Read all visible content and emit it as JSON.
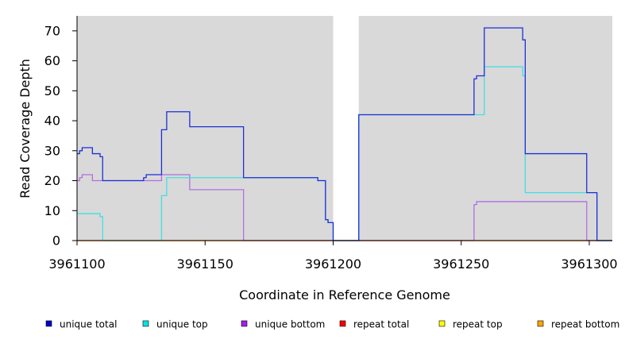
{
  "chart_data": {
    "type": "line",
    "title": "",
    "xlabel": "Coordinate in Reference Genome",
    "ylabel": "Read Coverage Depth",
    "xlim": [
      3961100,
      3961309
    ],
    "ylim": [
      0,
      75
    ],
    "x_ticks": [
      3961100,
      3961150,
      3961200,
      3961250,
      3961300
    ],
    "x_tick_labels": [
      "3961100",
      "3961150",
      "3961200",
      "3961250",
      "3961300"
    ],
    "y_ticks": [
      0,
      10,
      20,
      30,
      40,
      50,
      60,
      70
    ],
    "y_tick_labels": [
      "0",
      "10",
      "20",
      "30",
      "40",
      "50",
      "60",
      "70"
    ],
    "gap": [
      3961200,
      3961210
    ],
    "grid": false,
    "legend_position": "bottom",
    "background": "#d9d9d9",
    "series": [
      {
        "name": "unique total",
        "color": "#0000cc",
        "line_color": "#1f2fd8",
        "points": [
          [
            3961100,
            29
          ],
          [
            3961101,
            30
          ],
          [
            3961102,
            31
          ],
          [
            3961106,
            29
          ],
          [
            3961109,
            28
          ],
          [
            3961110,
            20
          ],
          [
            3961126,
            21
          ],
          [
            3961127,
            22
          ],
          [
            3961133,
            37
          ],
          [
            3961135,
            43
          ],
          [
            3961144,
            38
          ],
          [
            3961165,
            21
          ],
          [
            3961194,
            20
          ],
          [
            3961197,
            7
          ],
          [
            3961198,
            6
          ],
          [
            3961200,
            0
          ],
          [
            3961210,
            42
          ],
          [
            3961255,
            54
          ],
          [
            3961256,
            55
          ],
          [
            3961259,
            71
          ],
          [
            3961274,
            67
          ],
          [
            3961275,
            29
          ],
          [
            3961299,
            16
          ],
          [
            3961303,
            0
          ],
          [
            3961309,
            0
          ]
        ]
      },
      {
        "name": "unique top",
        "color": "#00e5e5",
        "line_color": "#40e0e0",
        "points": [
          [
            3961100,
            9
          ],
          [
            3961109,
            8
          ],
          [
            3961110,
            0
          ],
          [
            3961133,
            15
          ],
          [
            3961135,
            21
          ],
          [
            3961165,
            21
          ],
          [
            3961194,
            20
          ],
          [
            3961197,
            7
          ],
          [
            3961198,
            6
          ],
          [
            3961200,
            0
          ],
          [
            3961210,
            42
          ],
          [
            3961256,
            42
          ],
          [
            3961259,
            58
          ],
          [
            3961274,
            55
          ],
          [
            3961275,
            16
          ],
          [
            3961299,
            16
          ],
          [
            3961303,
            0
          ],
          [
            3961309,
            0
          ]
        ]
      },
      {
        "name": "unique bottom",
        "color": "#a020f0",
        "line_color": "#b070e0",
        "points": [
          [
            3961100,
            20
          ],
          [
            3961101,
            21
          ],
          [
            3961102,
            22
          ],
          [
            3961106,
            20
          ],
          [
            3961133,
            22
          ],
          [
            3961144,
            17
          ],
          [
            3961165,
            0
          ],
          [
            3961255,
            12
          ],
          [
            3961256,
            13
          ],
          [
            3961299,
            0
          ],
          [
            3961309,
            0
          ]
        ]
      },
      {
        "name": "repeat total",
        "color": "#ff0000",
        "line_color": "#ff3030",
        "points": [
          [
            3961100,
            0
          ],
          [
            3961200,
            0
          ],
          [
            3961210,
            0
          ],
          [
            3961309,
            0
          ]
        ]
      },
      {
        "name": "repeat top",
        "color": "#ffff00",
        "line_color": "#ffff40",
        "points": [
          [
            3961100,
            0
          ],
          [
            3961200,
            0
          ],
          [
            3961210,
            0
          ],
          [
            3961309,
            0
          ]
        ]
      },
      {
        "name": "repeat bottom",
        "color": "#ffa500",
        "line_color": "#ff9900",
        "points": [
          [
            3961100,
            0
          ],
          [
            3961200,
            0
          ],
          [
            3961210,
            0
          ],
          [
            3961300,
            0
          ]
        ]
      }
    ]
  }
}
